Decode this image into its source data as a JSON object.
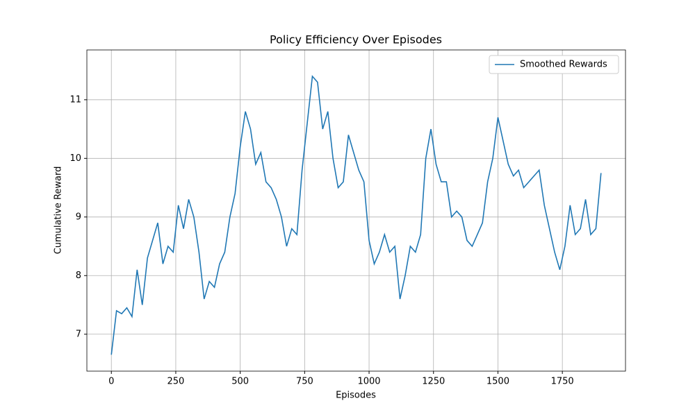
{
  "chart_data": {
    "type": "line",
    "title": "Policy Efficiency Over Episodes",
    "x_label": "Episodes",
    "y_label": "Cumulative Reward",
    "x": [
      0,
      20,
      40,
      60,
      80,
      100,
      120,
      140,
      160,
      180,
      200,
      220,
      240,
      260,
      280,
      300,
      320,
      340,
      360,
      380,
      400,
      420,
      440,
      460,
      480,
      500,
      520,
      540,
      560,
      580,
      600,
      620,
      640,
      660,
      680,
      700,
      720,
      740,
      760,
      780,
      800,
      820,
      840,
      860,
      880,
      900,
      920,
      940,
      960,
      980,
      1000,
      1020,
      1040,
      1060,
      1080,
      1100,
      1120,
      1140,
      1160,
      1180,
      1200,
      1220,
      1240,
      1260,
      1280,
      1300,
      1320,
      1340,
      1360,
      1380,
      1400,
      1420,
      1440,
      1460,
      1480,
      1500,
      1520,
      1540,
      1560,
      1580,
      1600,
      1620,
      1640,
      1660,
      1680,
      1700,
      1720,
      1740,
      1760,
      1780,
      1800,
      1820,
      1840,
      1860,
      1880,
      1900
    ],
    "series": [
      {
        "name": "Smoothed Rewards",
        "color": "#1f77b4",
        "values": [
          6.65,
          7.4,
          7.35,
          7.45,
          7.3,
          8.1,
          7.5,
          8.3,
          8.6,
          8.9,
          8.2,
          8.5,
          8.4,
          9.2,
          8.8,
          9.3,
          9.0,
          8.4,
          7.6,
          7.9,
          7.8,
          8.2,
          8.4,
          9.0,
          9.4,
          10.2,
          10.8,
          10.5,
          9.9,
          10.1,
          9.6,
          9.5,
          9.3,
          9.0,
          8.5,
          8.8,
          8.7,
          9.8,
          10.6,
          11.4,
          11.3,
          10.5,
          10.8,
          10.0,
          9.5,
          9.6,
          10.4,
          10.1,
          9.8,
          9.6,
          8.6,
          8.2,
          8.4,
          8.7,
          8.4,
          8.5,
          7.6,
          8.0,
          8.5,
          8.4,
          8.7,
          10.0,
          10.5,
          9.9,
          9.6,
          9.6,
          9.0,
          9.1,
          9.0,
          8.6,
          8.5,
          8.7,
          8.9,
          9.6,
          10.0,
          10.7,
          10.3,
          9.9,
          9.7,
          9.8,
          9.5,
          9.6,
          9.7,
          9.8,
          9.2,
          8.8,
          8.4,
          8.1,
          8.5,
          9.2,
          8.7,
          8.8,
          9.3,
          8.7,
          8.8,
          9.75
        ]
      }
    ],
    "xlim": [
      -95,
      1995
    ],
    "ylim": [
      6.37,
      11.85
    ],
    "xticks": [
      0,
      250,
      500,
      750,
      1000,
      1250,
      1500,
      1750
    ],
    "yticks": [
      7,
      8,
      9,
      10,
      11
    ],
    "grid": true,
    "legend": "upper right"
  }
}
